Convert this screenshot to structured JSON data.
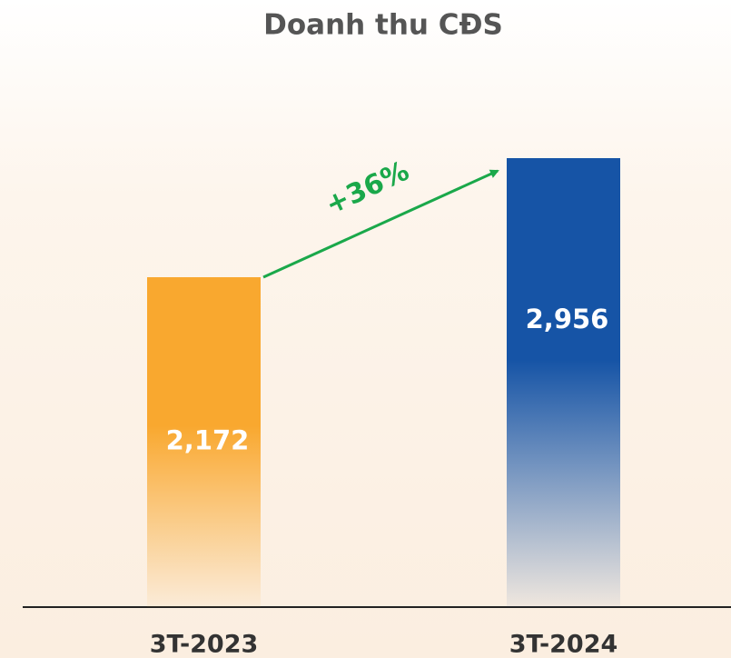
{
  "chart_data": {
    "type": "bar",
    "title": "Doanh thu CĐS",
    "categories": [
      "3T-2023",
      "3T-2024"
    ],
    "values": [
      2172,
      2956
    ],
    "value_labels": [
      "2,172",
      "2,956"
    ],
    "colors": [
      "#f9a82f",
      "#1654a6"
    ],
    "annotation": "+36%",
    "annotation_color": "#1aa84a"
  }
}
